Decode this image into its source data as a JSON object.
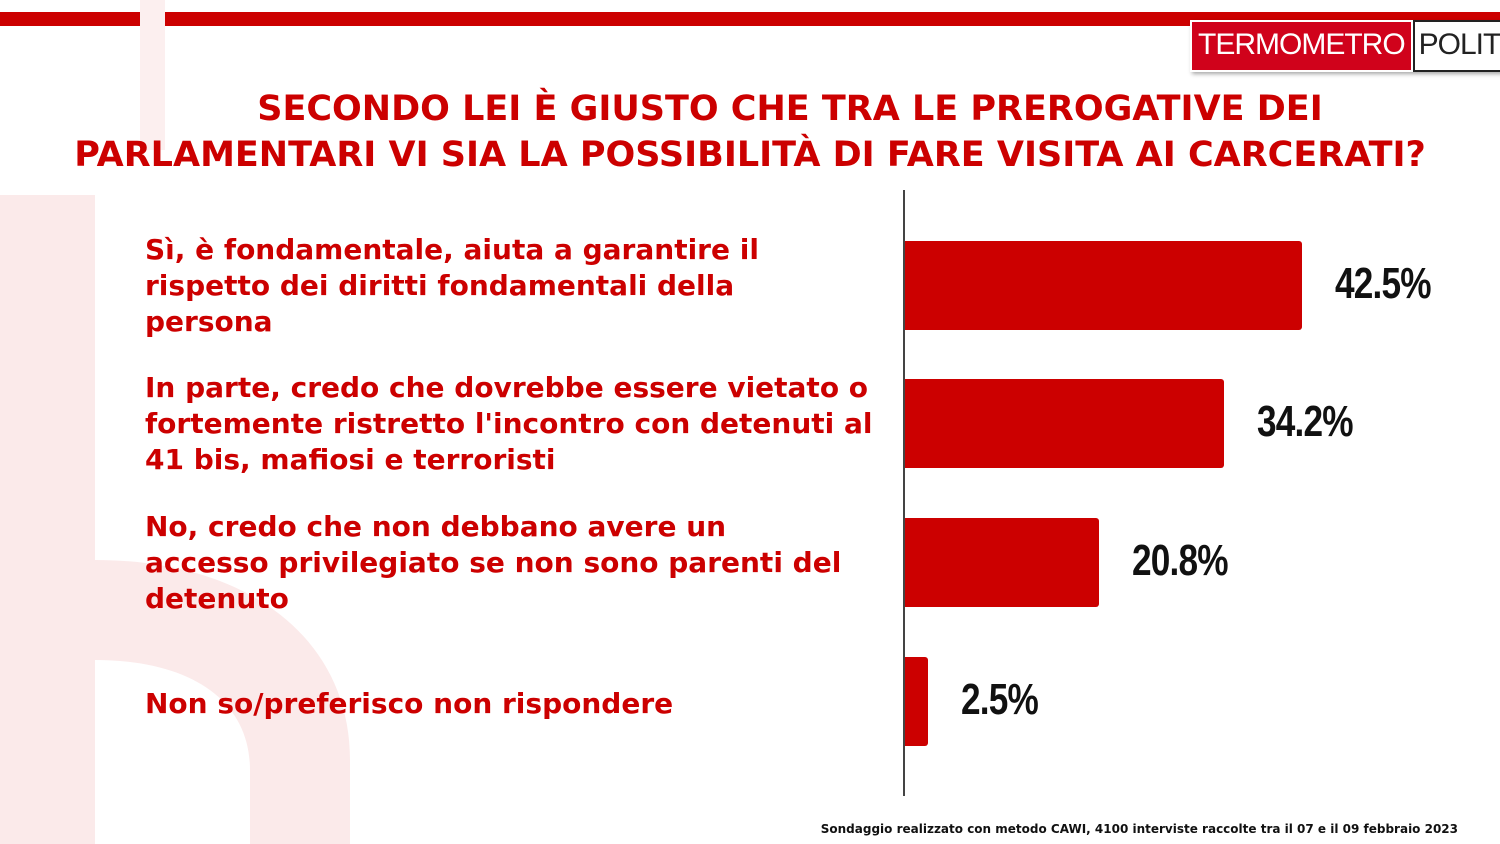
{
  "header": {
    "logo_part1": "TERMOMETRO",
    "logo_part2": "POLITICO",
    "title_line1": "SECONDO LEI È GIUSTO CHE TRA LE PREROGATIVE DEI",
    "title_line2": "PARLAMENTARI VI SIA LA POSSIBILITÀ DI FARE VISITA AI CARCERATI?"
  },
  "colors": {
    "accent": "#cc0000",
    "text_dark": "#111111"
  },
  "chart_data": {
    "type": "bar",
    "orientation": "horizontal",
    "title": "SECONDO LEI È GIUSTO CHE TRA LE PREROGATIVE DEI PARLAMENTARI VI SIA LA POSSIBILITÀ DI FARE VISITA AI CARCERATI?",
    "categories": [
      [
        "Sì, è fondamentale, aiuta a garantire il",
        "rispetto dei diritti fondamentali della",
        "persona"
      ],
      [
        "In parte, credo che dovrebbe essere vietato o",
        "fortemente ristretto l'incontro con detenuti al",
        "41 bis, mafiosi e terroristi"
      ],
      [
        "No, credo che non debbano avere un",
        "accesso privilegiato se non sono parenti del",
        "detenuto"
      ],
      [
        "Non so/preferisco non rispondere"
      ]
    ],
    "values": [
      42.5,
      34.2,
      20.8,
      2.5
    ],
    "value_labels": [
      "42.5%",
      "34.2%",
      "20.8%",
      "2.5%"
    ],
    "unit": "%",
    "xlim": [
      0,
      50
    ],
    "grid": false,
    "legend": "none"
  },
  "footer": {
    "note": "Sondaggio realizzato con metodo CAWI, 4100 interviste raccolte tra il 07 e il 09 febbraio 2023"
  }
}
